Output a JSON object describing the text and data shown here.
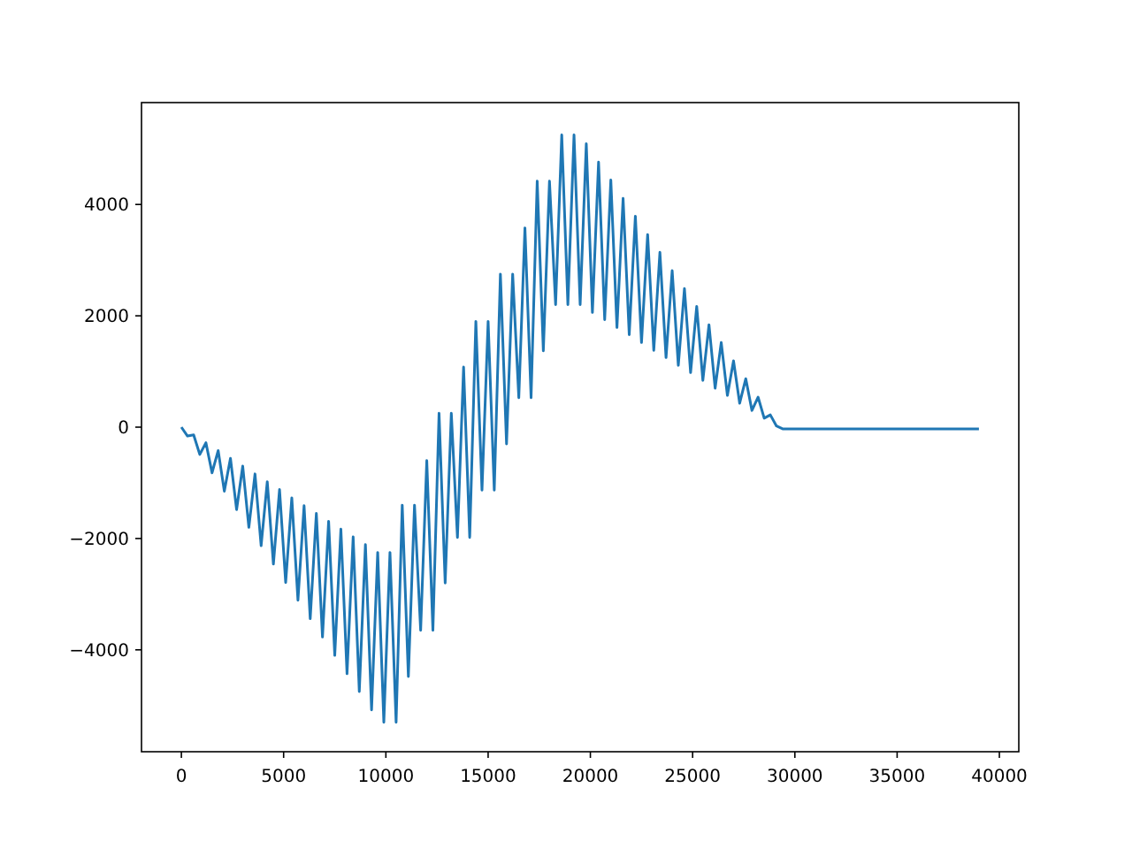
{
  "chart_data": {
    "type": "line",
    "x": [
      0,
      300,
      600,
      900,
      1200,
      1500,
      1800,
      2100,
      2400,
      2700,
      3000,
      3300,
      3600,
      3900,
      4200,
      4500,
      4800,
      5100,
      5400,
      5700,
      6000,
      6300,
      6600,
      6900,
      7200,
      7500,
      7800,
      8100,
      8400,
      8700,
      9000,
      9300,
      9600,
      9900,
      10200,
      10500,
      10800,
      11100,
      11400,
      11700,
      12000,
      12300,
      12600,
      12900,
      13200,
      13500,
      13800,
      14100,
      14400,
      14700,
      15000,
      15300,
      15600,
      15900,
      16200,
      16500,
      16800,
      17100,
      17400,
      17700,
      18000,
      18300,
      18600,
      18900,
      19200,
      19500,
      19800,
      20100,
      20400,
      20700,
      21000,
      21300,
      21600,
      21900,
      22200,
      22500,
      22800,
      23100,
      23400,
      23700,
      24000,
      24300,
      24600,
      24900,
      25200,
      25500,
      25800,
      26100,
      26400,
      26700,
      27000,
      27300,
      27600,
      27900,
      28200,
      28500,
      28800,
      29100,
      29400,
      39000
    ],
    "series": [
      {
        "color": "#1f77b4",
        "values": [
          0,
          -160,
          -140,
          -490,
          -280,
          -820,
          -420,
          -1150,
          -560,
          -1480,
          -700,
          -1800,
          -840,
          -2130,
          -980,
          -2460,
          -1120,
          -2790,
          -1270,
          -3110,
          -1410,
          -3440,
          -1550,
          -3770,
          -1690,
          -4100,
          -1830,
          -4430,
          -1970,
          -4750,
          -2110,
          -5080,
          -2250,
          -5300,
          -2250,
          -5300,
          -1400,
          -4480,
          -1400,
          -3650,
          -600,
          -3650,
          250,
          -2800,
          250,
          -1980,
          1080,
          -1980,
          1900,
          -1130,
          1900,
          -1130,
          2750,
          -300,
          2750,
          530,
          3580,
          530,
          4420,
          1370,
          4420,
          2200,
          5250,
          2200,
          5250,
          2200,
          5090,
          2060,
          4760,
          1930,
          4440,
          1790,
          4110,
          1660,
          3790,
          1520,
          3460,
          1380,
          3140,
          1250,
          2810,
          1110,
          2490,
          980,
          2170,
          840,
          1840,
          700,
          1520,
          570,
          1190,
          430,
          870,
          300,
          540,
          160,
          220,
          20,
          -30,
          -30
        ]
      }
    ],
    "xlim": [
      -1950,
      40950
    ],
    "ylim": [
      -5830,
      5830
    ],
    "xticks": [
      0,
      5000,
      10000,
      15000,
      20000,
      25000,
      30000,
      35000,
      40000
    ],
    "yticks": [
      {
        "value": -4000,
        "label": "−4000"
      },
      {
        "value": -2000,
        "label": "−2000"
      },
      0,
      2000,
      4000
    ]
  }
}
